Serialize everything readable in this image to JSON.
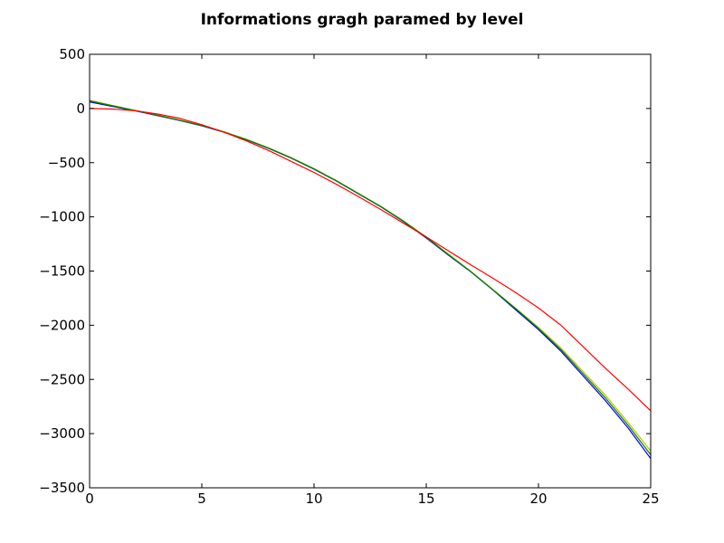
{
  "chart_data": {
    "type": "line",
    "title": "Informations gragh paramed by level",
    "xlabel": "",
    "ylabel": "",
    "xlim": [
      0,
      25
    ],
    "ylim": [
      -3500,
      500
    ],
    "xticks": [
      0,
      5,
      10,
      15,
      20,
      25
    ],
    "yticks": [
      500,
      0,
      -500,
      -1000,
      -1500,
      -2000,
      -2500,
      -3000,
      -3500
    ],
    "xtick_labels": [
      "0",
      "5",
      "10",
      "15",
      "20",
      "25"
    ],
    "ytick_labels": [
      "500",
      "0",
      "−500",
      "−1000",
      "−1500",
      "−2000",
      "−2500",
      "−3000",
      "−3500"
    ],
    "grid": false,
    "legend": "none",
    "series": [
      {
        "color": "#0000ff",
        "x": [
          0,
          1,
          2,
          3,
          4,
          5,
          6,
          7,
          8,
          9,
          10,
          11,
          12,
          13,
          14,
          15,
          16,
          17,
          18,
          19,
          20,
          21,
          22,
          23,
          24,
          25
        ],
        "y": [
          60,
          20,
          -20,
          -65,
          -110,
          -160,
          -220,
          -290,
          -370,
          -460,
          -560,
          -670,
          -790,
          -910,
          -1045,
          -1195,
          -1355,
          -1510,
          -1680,
          -1860,
          -2040,
          -2240,
          -2470,
          -2700,
          -2950,
          -3230
        ]
      },
      {
        "color": "#bfbf00",
        "x": [
          0,
          1,
          2,
          3,
          4,
          5,
          6,
          7,
          8,
          9,
          10,
          11,
          12,
          13,
          14,
          15,
          16,
          17,
          18,
          19,
          20,
          21,
          22,
          23,
          24,
          25
        ],
        "y": [
          75,
          30,
          -15,
          -60,
          -105,
          -155,
          -215,
          -285,
          -365,
          -455,
          -555,
          -665,
          -785,
          -905,
          -1040,
          -1185,
          -1345,
          -1505,
          -1675,
          -1845,
          -2020,
          -2210,
          -2430,
          -2650,
          -2900,
          -3160
        ]
      },
      {
        "color": "#008000",
        "x": [
          0,
          1,
          2,
          3,
          4,
          5,
          6,
          7,
          8,
          9,
          10,
          11,
          12,
          13,
          14,
          15,
          16,
          17,
          18,
          19,
          20,
          21,
          22,
          23,
          24,
          25
        ],
        "y": [
          70,
          25,
          -18,
          -62,
          -108,
          -158,
          -218,
          -288,
          -368,
          -458,
          -558,
          -668,
          -788,
          -908,
          -1042,
          -1190,
          -1350,
          -1508,
          -1678,
          -1850,
          -2030,
          -2225,
          -2450,
          -2675,
          -2925,
          -3195
        ]
      },
      {
        "color": "#ff0000",
        "x": [
          0,
          1,
          2,
          3,
          4,
          5,
          6,
          7,
          8,
          9,
          10,
          11,
          12,
          13,
          14,
          15,
          16,
          17,
          18,
          19,
          20,
          21,
          22,
          23,
          24,
          25
        ],
        "y": [
          0,
          -5,
          -20,
          -50,
          -90,
          -150,
          -220,
          -300,
          -390,
          -490,
          -590,
          -700,
          -815,
          -935,
          -1060,
          -1185,
          -1315,
          -1445,
          -1570,
          -1700,
          -1840,
          -2000,
          -2200,
          -2400,
          -2590,
          -2790
        ]
      }
    ]
  }
}
